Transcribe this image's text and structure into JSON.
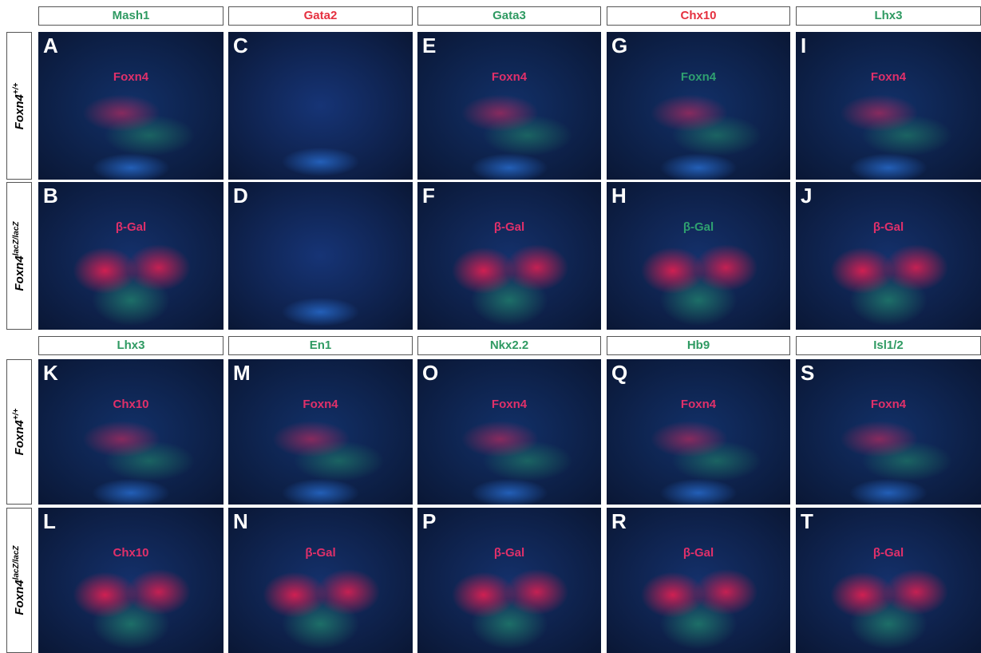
{
  "blocks": [
    {
      "headers": [
        {
          "text": "Mash1",
          "color": "#2f9a62"
        },
        {
          "text": "Gata2",
          "color": "#e5303f"
        },
        {
          "text": "Gata3",
          "color": "#2f9a62"
        },
        {
          "text": "Chx10",
          "color": "#e5303f"
        },
        {
          "text": "Lhx3",
          "color": "#2f9a62"
        }
      ],
      "rows": [
        {
          "label": "Foxn4",
          "label_sup": "+/+",
          "panels": [
            {
              "letter": "A",
              "marker": "Foxn4",
              "marker_color": "#e0306a"
            },
            {
              "letter": "C",
              "marker": null,
              "marker_color": null
            },
            {
              "letter": "E",
              "marker": "Foxn4",
              "marker_color": "#e0306a"
            },
            {
              "letter": "G",
              "marker": "Foxn4",
              "marker_color": "#2fa070"
            },
            {
              "letter": "I",
              "marker": "Foxn4",
              "marker_color": "#e0306a"
            }
          ]
        },
        {
          "label": "Foxn4",
          "label_sup": "lacZ/lacZ",
          "panels": [
            {
              "letter": "B",
              "marker": "β-Gal",
              "marker_color": "#e0306a"
            },
            {
              "letter": "D",
              "marker": null,
              "marker_color": null
            },
            {
              "letter": "F",
              "marker": "β-Gal",
              "marker_color": "#e0306a"
            },
            {
              "letter": "H",
              "marker": "β-Gal",
              "marker_color": "#2fa070"
            },
            {
              "letter": "J",
              "marker": "β-Gal",
              "marker_color": "#e0306a"
            }
          ]
        }
      ]
    },
    {
      "headers": [
        {
          "text": "Lhx3",
          "color": "#2f9a62"
        },
        {
          "text": "En1",
          "color": "#2f9a62"
        },
        {
          "text": "Nkx2.2",
          "color": "#2f9a62"
        },
        {
          "text": "Hb9",
          "color": "#2f9a62"
        },
        {
          "text": "Isl1/2",
          "color": "#2f9a62"
        }
      ],
      "rows": [
        {
          "label": "Foxn4",
          "label_sup": "+/+",
          "panels": [
            {
              "letter": "K",
              "marker": "Chx10",
              "marker_color": "#e0306a"
            },
            {
              "letter": "M",
              "marker": "Foxn4",
              "marker_color": "#e0306a"
            },
            {
              "letter": "O",
              "marker": "Foxn4",
              "marker_color": "#e0306a"
            },
            {
              "letter": "Q",
              "marker": "Foxn4",
              "marker_color": "#e0306a"
            },
            {
              "letter": "S",
              "marker": "Foxn4",
              "marker_color": "#e0306a"
            }
          ]
        },
        {
          "label": "Foxn4",
          "label_sup": "lacZ/lacZ",
          "panels": [
            {
              "letter": "L",
              "marker": "Chx10",
              "marker_color": "#e0306a"
            },
            {
              "letter": "N",
              "marker": "β-Gal",
              "marker_color": "#e0306a"
            },
            {
              "letter": "P",
              "marker": "β-Gal",
              "marker_color": "#e0306a"
            },
            {
              "letter": "R",
              "marker": "β-Gal",
              "marker_color": "#e0306a"
            },
            {
              "letter": "T",
              "marker": "β-Gal",
              "marker_color": "#e0306a"
            }
          ]
        }
      ]
    }
  ]
}
